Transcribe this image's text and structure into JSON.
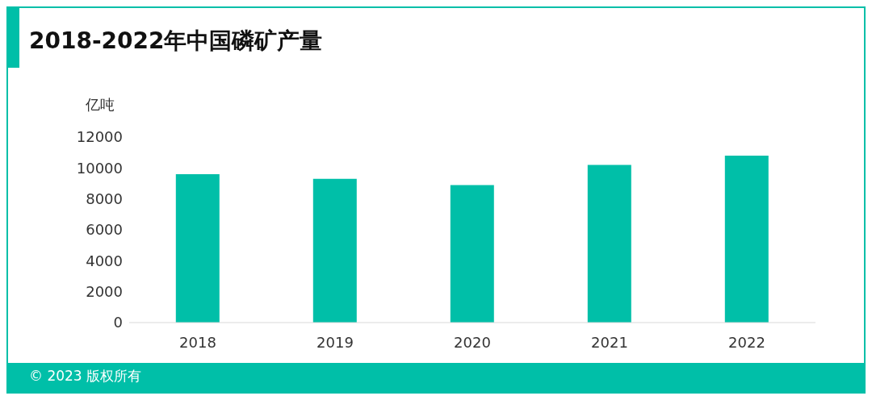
{
  "chart_data": {
    "type": "bar",
    "title": "2018-2022年中国磷矿产量",
    "ylabel": "亿吨",
    "categories": [
      "2018",
      "2019",
      "2020",
      "2021",
      "2022"
    ],
    "values": [
      9600,
      9300,
      8900,
      10200,
      10800
    ],
    "color": "#00bfa8",
    "ylim": [
      0,
      12000
    ],
    "yticks": [
      0,
      2000,
      4000,
      6000,
      8000,
      10000,
      12000
    ],
    "grid": false,
    "legend": false,
    "annotations": [
      "© 2023 版权所有"
    ]
  }
}
